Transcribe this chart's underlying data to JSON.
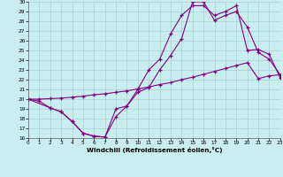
{
  "xlabel": "Windchill (Refroidissement éolien,°C)",
  "xlim": [
    0,
    23
  ],
  "ylim": [
    16,
    30
  ],
  "xticks": [
    0,
    1,
    2,
    3,
    4,
    5,
    6,
    7,
    8,
    9,
    10,
    11,
    12,
    13,
    14,
    15,
    16,
    17,
    18,
    19,
    20,
    21,
    22,
    23
  ],
  "yticks": [
    16,
    17,
    18,
    19,
    20,
    21,
    22,
    23,
    24,
    25,
    26,
    27,
    28,
    29,
    30
  ],
  "bg_color": "#c9eef0",
  "grid_color": "#a0c8cc",
  "line_color": "#800080",
  "line1_x": [
    0,
    1,
    2,
    3,
    4,
    5,
    6,
    7,
    8,
    9,
    10,
    11,
    12,
    13,
    14,
    15,
    16,
    17,
    18,
    19,
    20,
    21,
    22,
    23
  ],
  "line1_y": [
    20.0,
    19.8,
    19.1,
    18.7,
    17.7,
    16.5,
    16.2,
    16.1,
    19.0,
    19.3,
    20.7,
    21.2,
    23.0,
    24.5,
    26.2,
    30.0,
    30.0,
    28.1,
    28.6,
    29.0,
    27.4,
    24.8,
    24.1,
    22.5
  ],
  "line2_x": [
    0,
    2,
    3,
    4,
    5,
    6,
    7,
    8,
    9,
    10,
    11,
    12,
    13,
    14,
    15,
    16,
    17,
    18,
    19,
    20,
    21,
    22,
    23
  ],
  "line2_y": [
    20.0,
    19.1,
    18.7,
    17.7,
    16.5,
    16.2,
    16.1,
    18.2,
    19.3,
    21.0,
    23.0,
    24.1,
    26.7,
    28.6,
    29.6,
    29.6,
    28.6,
    29.0,
    29.6,
    25.0,
    25.1,
    24.6,
    22.2
  ],
  "line3_x": [
    0,
    1,
    2,
    3,
    4,
    5,
    6,
    7,
    8,
    9,
    10,
    11,
    12,
    13,
    14,
    15,
    16,
    17,
    18,
    19,
    20,
    21,
    22,
    23
  ],
  "line3_y": [
    20.0,
    20.0,
    20.05,
    20.1,
    20.2,
    20.3,
    20.45,
    20.55,
    20.7,
    20.85,
    21.05,
    21.25,
    21.5,
    21.7,
    22.0,
    22.25,
    22.55,
    22.85,
    23.15,
    23.45,
    23.75,
    22.1,
    22.4,
    22.5
  ]
}
